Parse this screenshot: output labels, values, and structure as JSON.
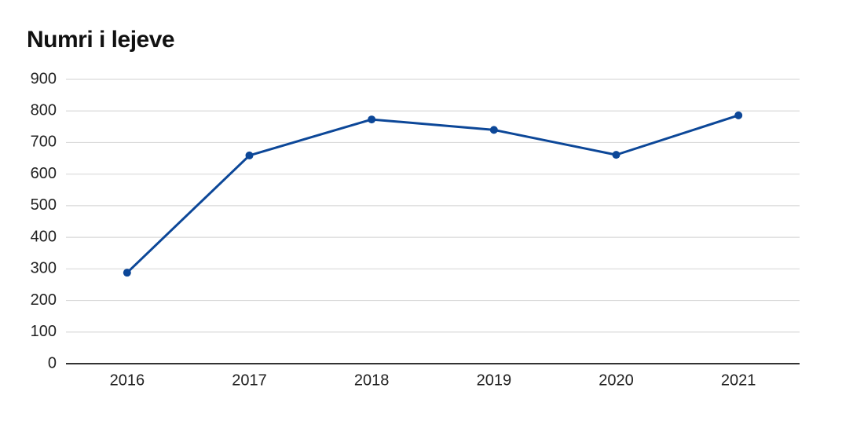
{
  "chart_data": {
    "type": "line",
    "title": "Numri i lejeve",
    "categories": [
      "2016",
      "2017",
      "2018",
      "2019",
      "2020",
      "2021"
    ],
    "values": [
      288,
      659,
      773,
      740,
      661,
      786
    ],
    "color": "#0c4798",
    "ylim": [
      0,
      900
    ],
    "yticks": [
      0,
      100,
      200,
      300,
      400,
      500,
      600,
      700,
      800,
      900
    ],
    "grid": true
  }
}
